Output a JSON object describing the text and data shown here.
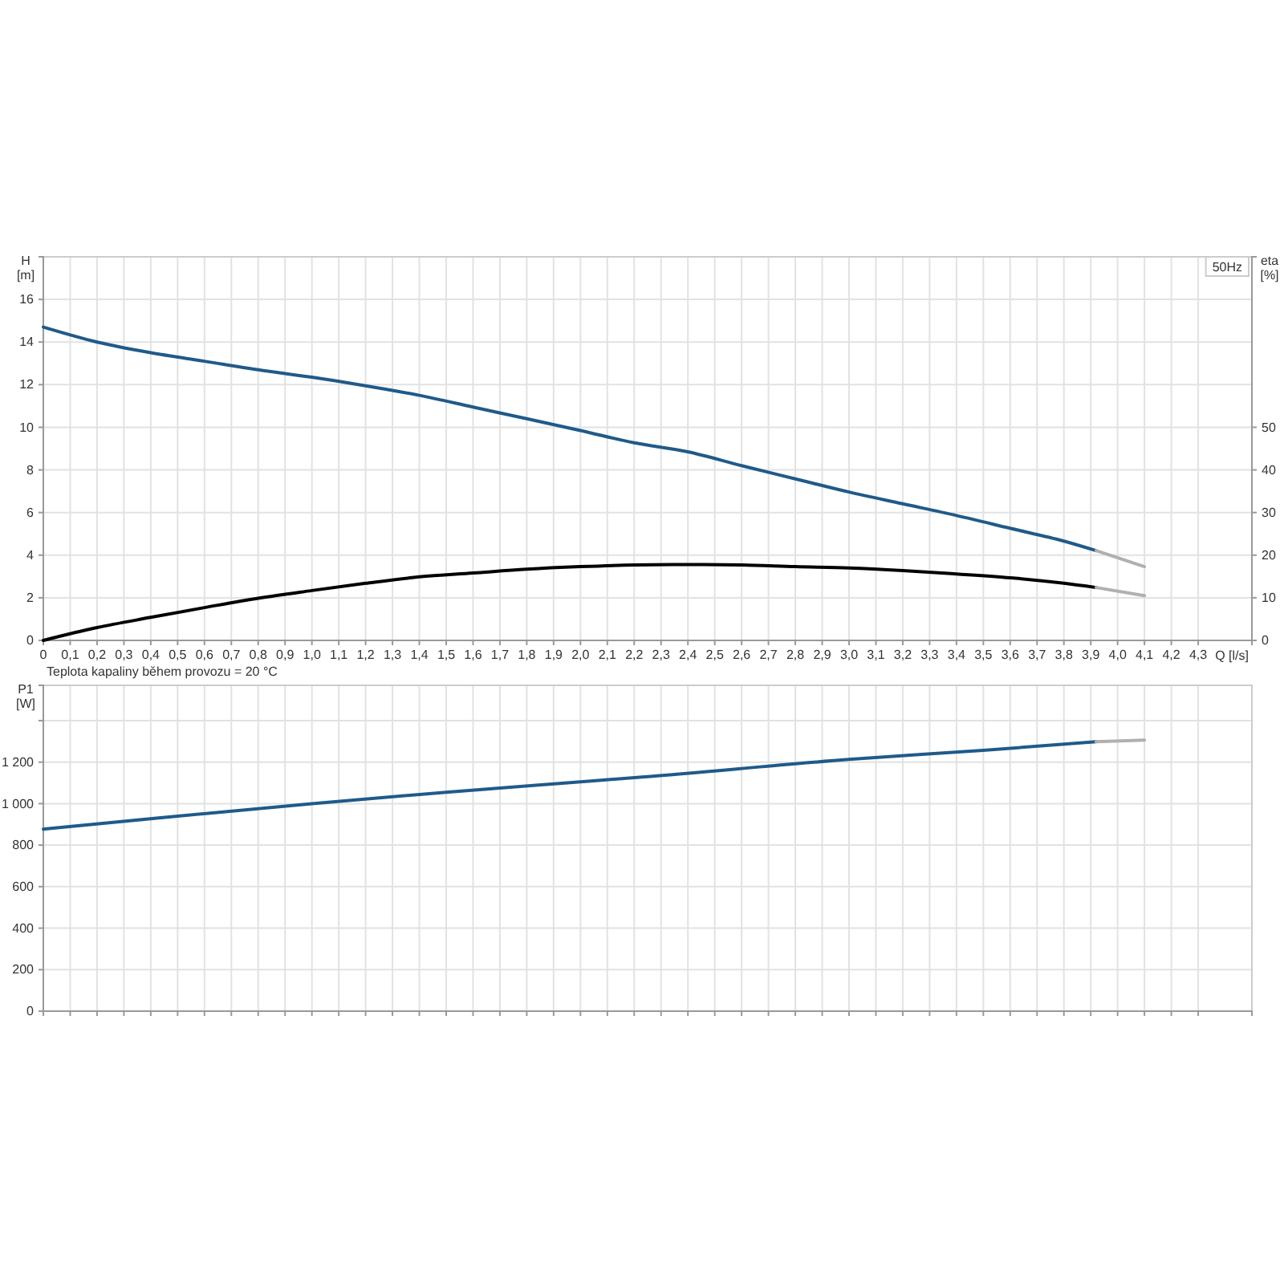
{
  "chart_data": [
    {
      "type": "line",
      "xlabel": "Q [l/s]",
      "ylabel": "H [m]",
      "y2label": "eta [%]",
      "grid": true,
      "annotations": [
        "50Hz",
        "Teplota kapaliny během provozu = 20 °C"
      ],
      "xlim": [
        0,
        4.5
      ],
      "ylim": [
        0,
        18
      ],
      "y2lim": [
        0,
        90
      ],
      "xticks": [
        0,
        {
          "value": 0.1,
          "label": "0,1"
        },
        {
          "value": 0.2,
          "label": "0,2"
        },
        {
          "value": 0.3,
          "label": "0,3"
        },
        {
          "value": 0.4,
          "label": "0,4"
        },
        {
          "value": 0.5,
          "label": "0,5"
        },
        {
          "value": 0.6,
          "label": "0,6"
        },
        {
          "value": 0.7,
          "label": "0,7"
        },
        {
          "value": 0.8,
          "label": "0,8"
        },
        {
          "value": 0.9,
          "label": "0,9"
        },
        {
          "value": 1.0,
          "label": "1,0"
        },
        {
          "value": 1.1,
          "label": "1,1"
        },
        {
          "value": 1.2,
          "label": "1,2"
        },
        {
          "value": 1.3,
          "label": "1,3"
        },
        {
          "value": 1.4,
          "label": "1,4"
        },
        {
          "value": 1.5,
          "label": "1,5"
        },
        {
          "value": 1.6,
          "label": "1,6"
        },
        {
          "value": 1.7,
          "label": "1,7"
        },
        {
          "value": 1.8,
          "label": "1,8"
        },
        {
          "value": 1.9,
          "label": "1,9"
        },
        {
          "value": 2.0,
          "label": "2,0"
        },
        {
          "value": 2.1,
          "label": "2,1"
        },
        {
          "value": 2.2,
          "label": "2,2"
        },
        {
          "value": 2.3,
          "label": "2,3"
        },
        {
          "value": 2.4,
          "label": "2,4"
        },
        {
          "value": 2.5,
          "label": "2,5"
        },
        {
          "value": 2.6,
          "label": "2,6"
        },
        {
          "value": 2.7,
          "label": "2,7"
        },
        {
          "value": 2.8,
          "label": "2,8"
        },
        {
          "value": 2.9,
          "label": "2,9"
        },
        {
          "value": 3.0,
          "label": "3,0"
        },
        {
          "value": 3.1,
          "label": "3,1"
        },
        {
          "value": 3.2,
          "label": "3,2"
        },
        {
          "value": 3.3,
          "label": "3,3"
        },
        {
          "value": 3.4,
          "label": "3,4"
        },
        {
          "value": 3.5,
          "label": "3,5"
        },
        {
          "value": 3.6,
          "label": "3,6"
        },
        {
          "value": 3.7,
          "label": "3,7"
        },
        {
          "value": 3.8,
          "label": "3,8"
        },
        {
          "value": 3.9,
          "label": "3,9"
        },
        {
          "value": 4.0,
          "label": "4,0"
        },
        {
          "value": 4.1,
          "label": "4,1"
        },
        {
          "value": 4.2,
          "label": "4,2"
        },
        {
          "value": 4.3,
          "label": "4,3"
        }
      ],
      "yticks": [
        0,
        2,
        4,
        6,
        8,
        10,
        12,
        14,
        16
      ],
      "y2ticks": [
        0,
        10,
        20,
        30,
        40,
        50
      ],
      "series": [
        {
          "color": "#1f5a8a",
          "x": [
            0,
            0.2,
            0.4,
            0.6,
            0.8,
            1.0,
            1.2,
            1.4,
            1.6,
            1.8,
            2.0,
            2.2,
            2.4,
            2.6,
            2.8,
            3.0,
            3.2,
            3.4,
            3.6,
            3.8,
            3.92
          ],
          "values": [
            14.7,
            14.0,
            13.5,
            13.1,
            12.7,
            12.35,
            11.95,
            11.5,
            10.95,
            10.4,
            9.85,
            9.27,
            8.85,
            8.2,
            7.58,
            6.96,
            6.41,
            5.86,
            5.26,
            4.66,
            4.21
          ]
        },
        {
          "color": "#b0b0b0",
          "x": [
            3.92,
            4.1
          ],
          "values": [
            4.21,
            3.46
          ]
        },
        {
          "color": "#000000",
          "axis": "y2",
          "x": [
            0,
            0.2,
            0.4,
            0.6,
            0.8,
            1.0,
            1.2,
            1.4,
            1.6,
            1.8,
            2.0,
            2.2,
            2.4,
            2.6,
            2.8,
            3.0,
            3.2,
            3.4,
            3.6,
            3.8,
            3.92
          ],
          "values": [
            0,
            3.0,
            5.4,
            7.7,
            9.9,
            11.7,
            13.4,
            14.9,
            15.8,
            16.7,
            17.3,
            17.7,
            17.8,
            17.7,
            17.3,
            17.0,
            16.4,
            15.6,
            14.7,
            13.4,
            12.4
          ]
        },
        {
          "color": "#b0b0b0",
          "axis": "y2",
          "x": [
            3.92,
            4.1
          ],
          "values": [
            12.4,
            10.5
          ]
        }
      ]
    },
    {
      "type": "line",
      "ylabel": "P1 [W]",
      "grid": true,
      "tick_labels": "y",
      "xlim": [
        0,
        4.5
      ],
      "ylim": [
        0,
        1570
      ],
      "xticks": [
        0,
        0.1,
        0.2,
        0.3,
        0.4,
        0.5,
        0.6,
        0.7,
        0.8,
        0.9,
        1.0,
        1.1,
        1.2,
        1.3,
        1.4,
        1.5,
        1.6,
        1.7,
        1.8,
        1.9,
        2.0,
        2.1,
        2.2,
        2.3,
        2.4,
        2.5,
        2.6,
        2.7,
        2.8,
        2.9,
        3.0,
        3.1,
        3.2,
        3.3,
        3.4,
        3.5,
        3.6,
        3.7,
        3.8,
        3.9,
        4.0,
        4.1,
        4.2,
        4.3
      ],
      "yticks": [
        0,
        200,
        400,
        600,
        800,
        {
          "value": 1000,
          "label": "1 000"
        },
        {
          "value": 1200,
          "label": "1 200"
        },
        {
          "value": 1400,
          "label": null
        }
      ],
      "series": [
        {
          "color": "#1f5a8a",
          "x": [
            0,
            0.5,
            1.0,
            1.5,
            2.0,
            2.23,
            3.0,
            3.5,
            3.92
          ],
          "values": [
            877,
            940,
            1000,
            1055,
            1105,
            1128,
            1213,
            1257,
            1298
          ]
        },
        {
          "color": "#b0b0b0",
          "x": [
            3.92,
            4.1
          ],
          "values": [
            1298,
            1306
          ]
        }
      ]
    }
  ]
}
